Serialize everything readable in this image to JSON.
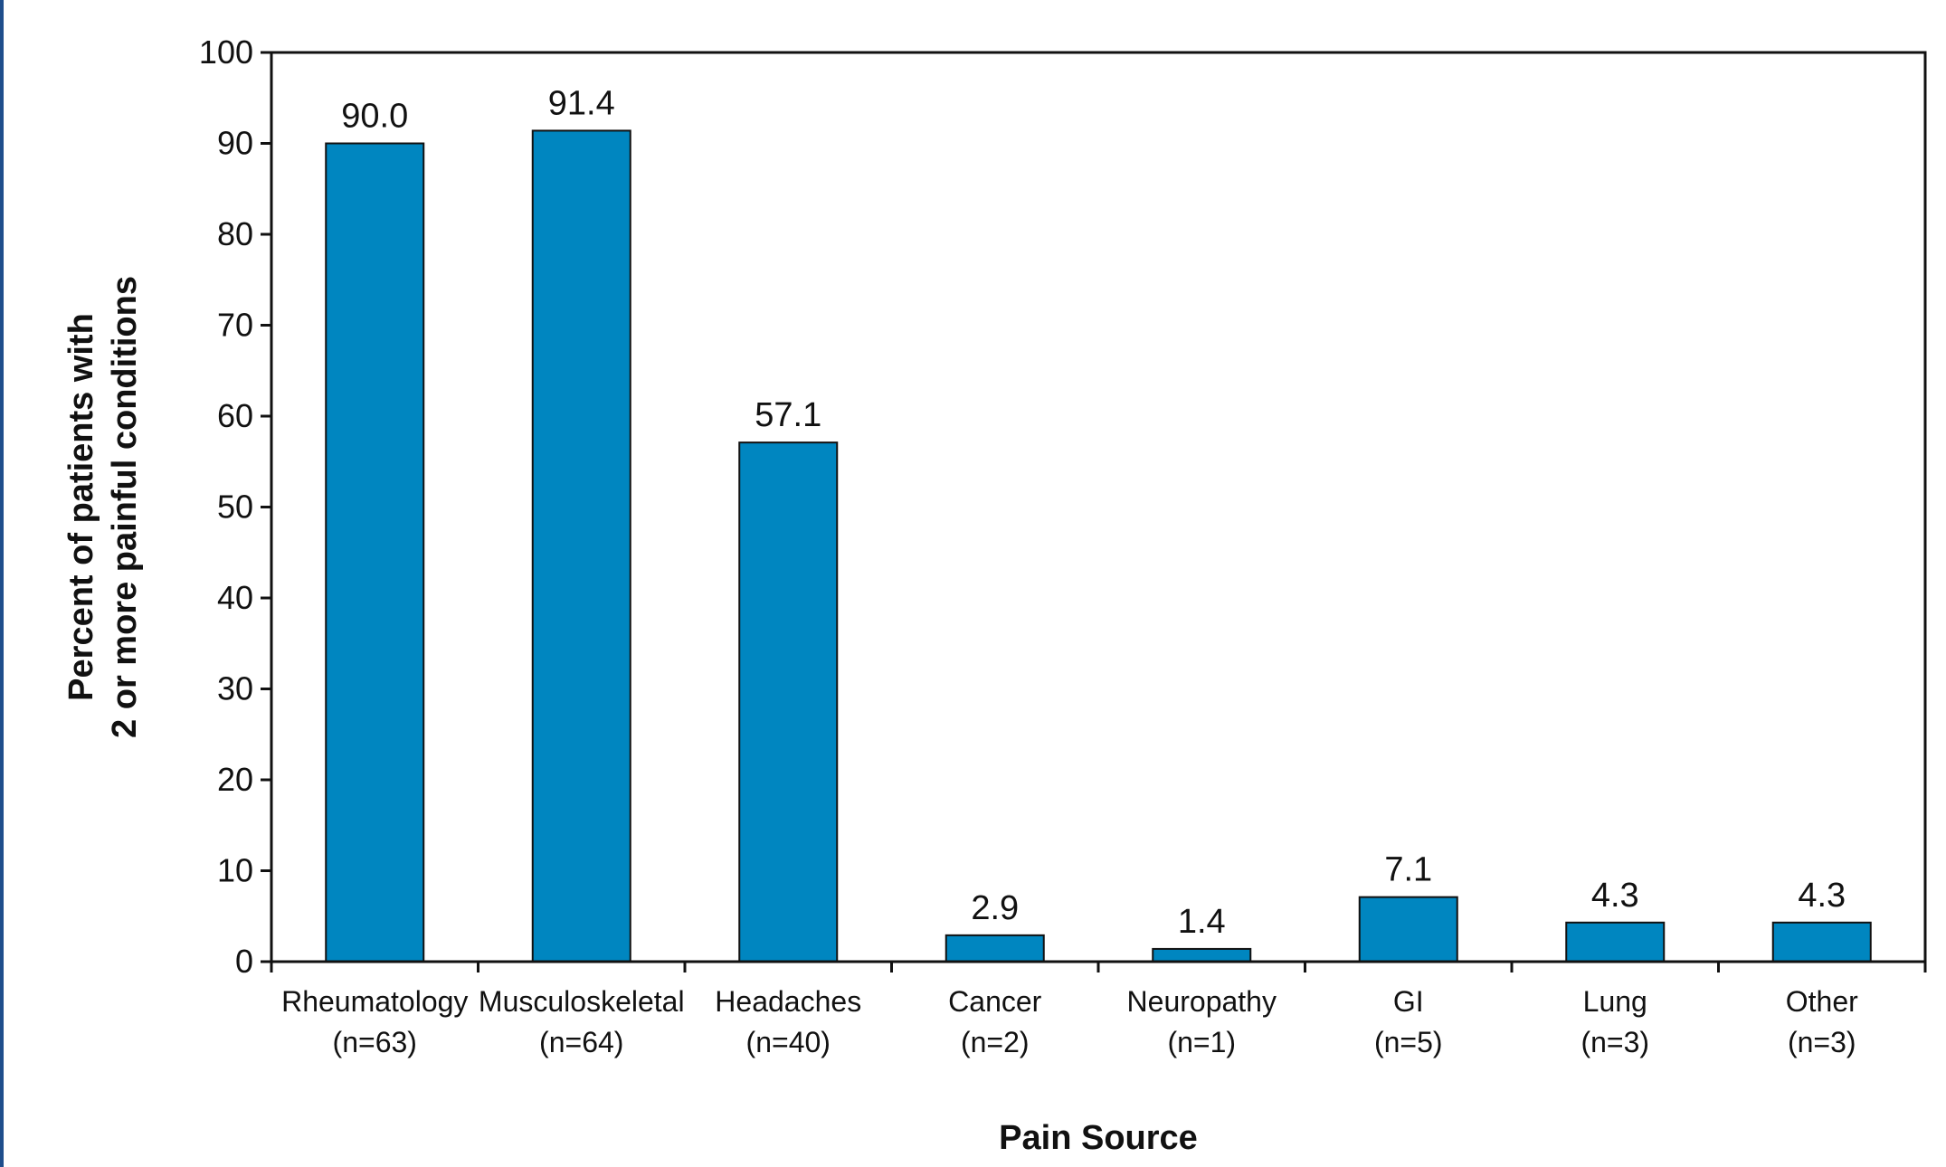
{
  "chart_data": {
    "type": "bar",
    "categories": [
      "Rheumatology",
      "Musculoskeletal",
      "Headaches",
      "Cancer",
      "Neuropathy",
      "GI",
      "Lung",
      "Other"
    ],
    "category_counts": [
      "(n=63)",
      "(n=64)",
      "(n=40)",
      "(n=2)",
      "(n=1)",
      "(n=5)",
      "(n=3)",
      "(n=3)"
    ],
    "values": [
      90.0,
      91.4,
      57.1,
      2.9,
      1.4,
      7.1,
      4.3,
      4.3
    ],
    "value_labels": [
      "90.0",
      "91.4",
      "57.1",
      "2.9",
      "1.4",
      "7.1",
      "4.3",
      "4.3"
    ],
    "title": "",
    "xlabel": "Pain Source",
    "ylabel_lines": [
      "Percent of patients with",
      "2 or more painful conditions"
    ],
    "ylim": [
      0,
      100
    ],
    "yticks": [
      0,
      10,
      20,
      30,
      40,
      50,
      60,
      70,
      80,
      90,
      100
    ],
    "grid": false,
    "bar_color": "#0086c0",
    "border_color": "#1f4e8c"
  }
}
